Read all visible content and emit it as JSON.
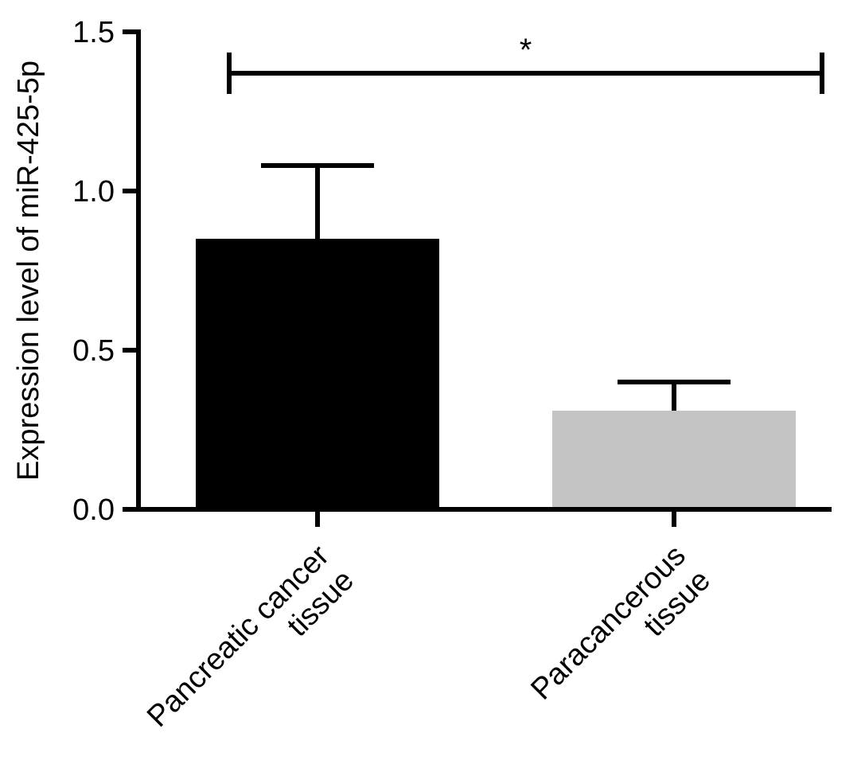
{
  "chart_data": {
    "type": "bar",
    "title": "",
    "xlabel": "",
    "ylabel": "Expression level of miR-425-5p",
    "ylim": [
      0,
      1.5
    ],
    "yticks": [
      {
        "value": 0.0,
        "label": "0.0"
      },
      {
        "value": 0.5,
        "label": "0.5"
      },
      {
        "value": 1.0,
        "label": "1.0"
      },
      {
        "value": 1.5,
        "label": "1.5"
      }
    ],
    "categories": [
      {
        "lines": [
          "Pancreatic cancer",
          "tissue"
        ]
      },
      {
        "lines": [
          "Paracancerous",
          "tissue"
        ]
      }
    ],
    "values": [
      0.85,
      0.31
    ],
    "error_upper": [
      1.08,
      0.4
    ],
    "bar_colors": [
      "#000000",
      "#c4c4c4"
    ],
    "significance": {
      "label": "*",
      "from": 0,
      "to": 1,
      "y": 1.37
    },
    "grid": false,
    "legend": "none"
  }
}
